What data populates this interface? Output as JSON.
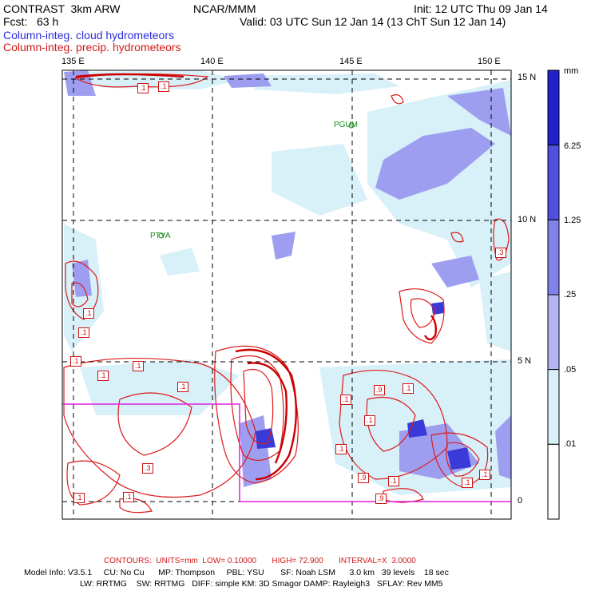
{
  "header": {
    "model": "CONTRAST  3km ARW",
    "center": "NCAR/MMM",
    "init": "Init: 12 UTC Thu 09 Jan 14",
    "fcst": "Fcst:   63 h",
    "valid": "Valid: 03 UTC Sun 12 Jan 14 (13 ChT Sun 12 Jan 14)",
    "field1": "Column-integ. cloud hydrometeors",
    "field2": "Column-integ. precip. hydrometeors"
  },
  "axes": {
    "lon_labels": [
      "135 E",
      "140 E",
      "145 E",
      "150 E"
    ],
    "lat_labels": [
      "15 N",
      "10 N",
      "5 N",
      "0"
    ]
  },
  "places": [
    "PGUM",
    "PTYA"
  ],
  "contour_labels": [
    ".1",
    ".1",
    ".1",
    ".1",
    ".1",
    ".1",
    ".1",
    ".1",
    ".3",
    ".1",
    ".9",
    ".1",
    ".1",
    ".1",
    ".9",
    ".9",
    ".1",
    ".1",
    ".3",
    ".1",
    ".1",
    ".1"
  ],
  "legend": {
    "unit": "mm",
    "levels": [
      "6.25",
      "1.25",
      ".25",
      ".05",
      ".01"
    ],
    "colors": [
      "#2222cc",
      "#5050e0",
      "#8282ec",
      "#b4b4f4",
      "#d8f0f8",
      "#ffffff"
    ]
  },
  "footer": {
    "contours": "CONTOURS:  UNITS=mm  LOW= 0.10000       HIGH= 72.900       INTERVAL=X  3.0000",
    "model_info": "Model Info: V3.5.1     CU: No Cu      MP: Thompson     PBL: YSU       SF: Noah LSM      3.0 km   39 levels    18 sec",
    "model_info2": "LW: RRTMG    SW: RRTMG   DIFF: simple KM: 3D Smagor DAMP: Rayleigh3   SFLAY: Rev MM5"
  }
}
